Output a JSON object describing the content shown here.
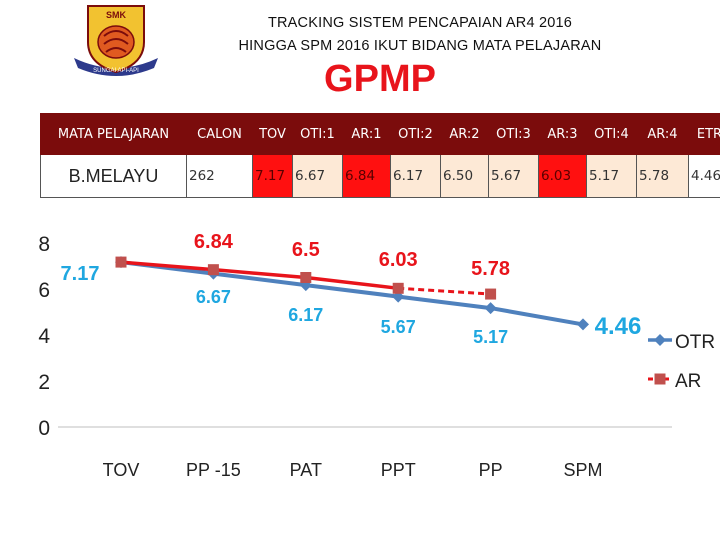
{
  "header": {
    "title_line1": "TRACKING SISTEM PENCAPAIAN AR4 2016",
    "title_line2": "HINGGA SPM 2016 IKUT BIDANG MATA PELAJARAN",
    "subtitle": "GPMP",
    "logo_text_top": "SMK",
    "logo_text_bottom": "SUNGAI API-API"
  },
  "table": {
    "headers": [
      "MATA PELAJARAN",
      "CALON",
      "TOV",
      "OTI:1",
      "AR:1",
      "OTI:2",
      "AR:2",
      "OTI:3",
      "AR:3",
      "OTI:4",
      "AR:4",
      "ETR"
    ],
    "row": [
      "B.MELAYU",
      "262",
      "7.17",
      "6.67",
      "6.84",
      "6.17",
      "6.50",
      "5.67",
      "6.03",
      "5.17",
      "5.78",
      "4.46"
    ]
  },
  "colors": {
    "header_bg": "#7b0c0c",
    "cell_red": "#ff1010",
    "cell_peach": "#fde9d6",
    "otr": "#4f81bd",
    "ar": "#e8141b",
    "otr_label": "#1fa7e0",
    "ar_label": "#e8141b"
  },
  "chart_data": {
    "type": "line",
    "categories": [
      "TOV",
      "PP -15",
      "PAT",
      "PPT",
      "PP",
      "SPM"
    ],
    "ylim": [
      0,
      8
    ],
    "yticks": [
      "0",
      "2",
      "4",
      "6",
      "8"
    ],
    "legend_position": "right",
    "grid": false,
    "series": [
      {
        "name": "OTR",
        "values": [
          7.17,
          6.67,
          6.17,
          5.67,
          5.17,
          4.46
        ],
        "labels": [
          "7.17",
          "6.67",
          "6.17",
          "5.67",
          "5.17",
          "4.46"
        ]
      },
      {
        "name": "AR",
        "values": [
          7.17,
          6.84,
          6.5,
          6.03,
          5.78,
          null
        ],
        "labels": [
          "",
          "6.84",
          "6.5",
          "6.03",
          "5.78",
          ""
        ]
      }
    ]
  }
}
